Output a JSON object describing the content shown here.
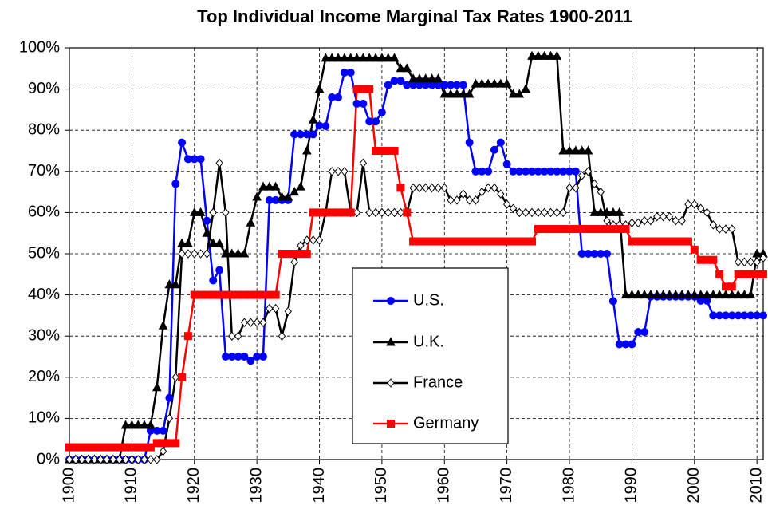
{
  "chart_data": {
    "type": "line",
    "title": "Top Individual Income Marginal Tax Rates 1900-2011",
    "x": [
      1900,
      1901,
      1902,
      1903,
      1904,
      1905,
      1906,
      1907,
      1908,
      1909,
      1910,
      1911,
      1912,
      1913,
      1914,
      1915,
      1916,
      1917,
      1918,
      1919,
      1920,
      1921,
      1922,
      1923,
      1924,
      1925,
      1926,
      1927,
      1928,
      1929,
      1930,
      1931,
      1932,
      1933,
      1934,
      1935,
      1936,
      1937,
      1938,
      1939,
      1940,
      1941,
      1942,
      1943,
      1944,
      1945,
      1946,
      1947,
      1948,
      1949,
      1950,
      1951,
      1952,
      1953,
      1954,
      1955,
      1956,
      1957,
      1958,
      1959,
      1960,
      1961,
      1962,
      1963,
      1964,
      1965,
      1966,
      1967,
      1968,
      1969,
      1970,
      1971,
      1972,
      1973,
      1974,
      1975,
      1976,
      1977,
      1978,
      1979,
      1980,
      1981,
      1982,
      1983,
      1984,
      1985,
      1986,
      1987,
      1988,
      1989,
      1990,
      1991,
      1992,
      1993,
      1994,
      1995,
      1996,
      1997,
      1998,
      1999,
      2000,
      2001,
      2002,
      2003,
      2004,
      2005,
      2006,
      2007,
      2008,
      2009,
      2010,
      2011
    ],
    "xlim": [
      1900,
      2011
    ],
    "xticks": [
      1900,
      1910,
      1920,
      1930,
      1940,
      1950,
      1960,
      1970,
      1980,
      1990,
      2000,
      2010
    ],
    "ylim": [
      0,
      100
    ],
    "yticks": [
      {
        "value": 0,
        "label": "0%"
      },
      {
        "value": 10,
        "label": "10%"
      },
      {
        "value": 20,
        "label": "20%"
      },
      {
        "value": 30,
        "label": "30%"
      },
      {
        "value": 40,
        "label": "40%"
      },
      {
        "value": 50,
        "label": "50%"
      },
      {
        "value": 60,
        "label": "60%"
      },
      {
        "value": 70,
        "label": "70%"
      },
      {
        "value": 80,
        "label": "80%"
      },
      {
        "value": 90,
        "label": "90%"
      },
      {
        "value": 100,
        "label": "100%"
      }
    ],
    "grid": true,
    "series": [
      {
        "name": "U.S.",
        "color": "#0000ff",
        "marker": "circle",
        "values": [
          0,
          0,
          0,
          0,
          0,
          0,
          0,
          0,
          0,
          0,
          0,
          0,
          0,
          7,
          7,
          7,
          15,
          67,
          77,
          73,
          73,
          73,
          58,
          43.5,
          46,
          25,
          25,
          25,
          25,
          24,
          25,
          25,
          63,
          63,
          63,
          63,
          79,
          79,
          79,
          79,
          81.1,
          81,
          88,
          88,
          94,
          94,
          86.45,
          86.45,
          82.13,
          82.13,
          84.36,
          91,
          92,
          92,
          91,
          91,
          91,
          91,
          91,
          91,
          91,
          91,
          91,
          91,
          77,
          70,
          70,
          70,
          75.25,
          77,
          71.75,
          70,
          70,
          70,
          70,
          70,
          70,
          70,
          70,
          70,
          70,
          70,
          50,
          50,
          50,
          50,
          50,
          38.5,
          28,
          28,
          28,
          31,
          31,
          39.6,
          39.6,
          39.6,
          39.6,
          39.6,
          39.6,
          39.6,
          39.6,
          38.6,
          38.6,
          35,
          35,
          35,
          35,
          35,
          35,
          35,
          35,
          35
        ]
      },
      {
        "name": "U.K.",
        "color": "#000000",
        "marker": "triangle",
        "values": [
          0,
          0,
          0,
          0,
          0,
          0,
          0,
          0,
          0,
          8.33,
          8.33,
          8.33,
          8.33,
          8.33,
          17.5,
          32.5,
          42.5,
          42.5,
          52.5,
          52.5,
          60,
          60,
          55,
          52.5,
          52.5,
          50,
          50,
          50,
          50,
          57.5,
          63.75,
          66.25,
          66.25,
          66.25,
          63.75,
          63.75,
          65,
          66.25,
          75,
          82.5,
          90,
          97.5,
          97.5,
          97.5,
          97.5,
          97.5,
          97.5,
          97.5,
          97.5,
          97.5,
          97.5,
          97.5,
          97.5,
          95,
          95,
          92.5,
          92.5,
          92.5,
          92.5,
          92.5,
          88.75,
          88.75,
          88.75,
          88.75,
          88.75,
          91.25,
          91.25,
          91.25,
          91.25,
          91.25,
          91.25,
          88.75,
          88.75,
          90,
          98,
          98,
          98,
          98,
          98,
          75,
          75,
          75,
          75,
          75,
          60,
          60,
          60,
          60,
          60,
          40,
          40,
          40,
          40,
          40,
          40,
          40,
          40,
          40,
          40,
          40,
          40,
          40,
          40,
          40,
          40,
          40,
          40,
          40,
          40,
          40,
          50,
          50
        ]
      },
      {
        "name": "France",
        "color": "#000000",
        "marker": "diamond",
        "values": [
          0,
          0,
          0,
          0,
          0,
          0,
          0,
          0,
          0,
          0,
          0,
          0,
          0,
          0,
          0,
          2,
          10,
          20,
          50,
          50,
          50,
          50,
          50,
          60,
          72,
          60,
          30,
          30,
          33.3,
          33.3,
          33.3,
          33.3,
          36.7,
          36.7,
          30,
          36,
          48,
          52,
          53.3,
          53.3,
          53.3,
          60,
          70,
          70,
          70,
          60,
          60,
          72,
          60,
          60,
          60,
          60,
          60,
          60,
          60,
          66,
          66,
          66,
          66,
          66,
          66,
          63,
          63,
          64.5,
          63,
          63,
          65,
          66,
          66,
          64.5,
          62,
          61,
          60,
          60,
          60,
          60,
          60,
          60,
          60,
          60,
          66,
          66,
          69,
          70,
          67,
          65,
          58,
          57,
          57,
          57,
          57.5,
          57.5,
          58,
          58,
          59,
          59,
          59,
          58,
          58,
          62,
          62,
          61,
          60,
          57,
          56,
          56,
          56,
          48,
          48,
          48,
          48,
          49
        ]
      },
      {
        "name": "Germany",
        "color": "#ff0000",
        "marker": "square",
        "values": [
          3,
          3,
          3,
          3,
          3,
          3,
          3,
          3,
          3,
          3,
          3,
          3,
          3,
          3,
          4,
          4,
          4,
          4,
          20,
          30,
          40,
          40,
          40,
          40,
          40,
          40,
          40,
          40,
          40,
          40,
          40,
          40,
          40,
          40,
          50,
          50,
          50,
          50,
          50,
          60,
          60,
          60,
          60,
          60,
          60,
          60,
          90,
          90,
          90,
          75,
          75,
          75,
          75,
          66,
          60,
          53,
          53,
          53,
          53,
          53,
          53,
          53,
          53,
          53,
          53,
          53,
          53,
          53,
          53,
          53,
          53,
          53,
          53,
          53,
          53,
          56,
          56,
          56,
          56,
          56,
          56,
          56,
          56,
          56,
          56,
          56,
          56,
          56,
          56,
          56,
          53,
          53,
          53,
          53,
          53,
          53,
          53,
          53,
          53,
          53,
          51,
          48.5,
          48.5,
          48.5,
          45,
          42,
          42,
          45,
          45,
          45,
          45,
          45
        ]
      }
    ]
  }
}
